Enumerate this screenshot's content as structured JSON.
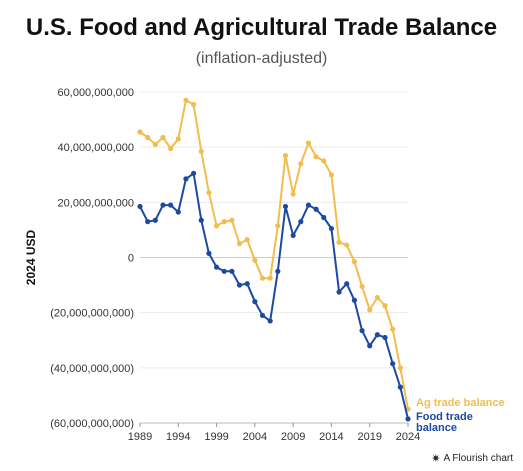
{
  "header": {
    "title": "U.S. Food and Agricultural Trade Balance",
    "subtitle": "(inflation-adjusted)"
  },
  "footer": {
    "credit": "A Flourish chart",
    "icon": "flourish-star-icon"
  },
  "chart_data": {
    "type": "line",
    "title": "U.S. Food and Agricultural Trade Balance",
    "subtitle": "(inflation-adjusted)",
    "xlabel": "",
    "ylabel": "2024 USD",
    "ylim": [
      -60000000000,
      60000000000
    ],
    "xlim": [
      1989,
      2024
    ],
    "x_ticks": [
      1989,
      1994,
      1999,
      2004,
      2009,
      2014,
      2019,
      2024
    ],
    "x_tick_labels": [
      "1989",
      "1994",
      "1999",
      "2004",
      "2009",
      "2014",
      "2019",
      "2024"
    ],
    "y_ticks": [
      60000000000,
      40000000000,
      20000000000,
      0,
      -20000000000,
      -40000000000,
      -60000000000
    ],
    "y_tick_labels": [
      "60,000,000,000",
      "40,000,000,000",
      "20,000,000,000",
      "0",
      "(20,000,000,000)",
      "(40,000,000,000)",
      "(60,000,000,000)"
    ],
    "grid": "horizontal",
    "legend": "direct labels at line ends",
    "x": [
      1989,
      1990,
      1991,
      1992,
      1993,
      1994,
      1995,
      1996,
      1997,
      1998,
      1999,
      2000,
      2001,
      2002,
      2003,
      2004,
      2005,
      2006,
      2007,
      2008,
      2009,
      2010,
      2011,
      2012,
      2013,
      2014,
      2015,
      2016,
      2017,
      2018,
      2019,
      2020,
      2021,
      2022,
      2023,
      2024
    ],
    "series": [
      {
        "name": "Ag trade balance",
        "color": "#f2bd4f",
        "values": [
          45.5,
          43.5,
          41,
          43.5,
          39.5,
          43,
          57,
          55.5,
          38.5,
          23.5,
          11.5,
          13,
          13.5,
          5,
          6.5,
          -1,
          -7.5,
          -7.5,
          11.5,
          37,
          23,
          34,
          41.5,
          36.5,
          35,
          30,
          5.5,
          4.5,
          -1.5,
          -10.5,
          -19,
          -14.5,
          -17.5,
          -26,
          -40,
          -55
        ]
      },
      {
        "name": "Food trade balance",
        "color": "#1d4aa0",
        "values": [
          18.5,
          13,
          13.5,
          19,
          19,
          16.5,
          28.5,
          30.5,
          13.5,
          1.5,
          -3.5,
          -5,
          -5,
          -10,
          -9.5,
          -16,
          -21,
          -23,
          -5,
          18.5,
          8,
          13,
          19,
          17.5,
          14.5,
          10.5,
          -12.5,
          -9.5,
          -15.5,
          -26.5,
          -32,
          -28,
          -29,
          -38.5,
          -47,
          -58.5
        ]
      }
    ],
    "value_unit": "billion 2024 USD"
  }
}
